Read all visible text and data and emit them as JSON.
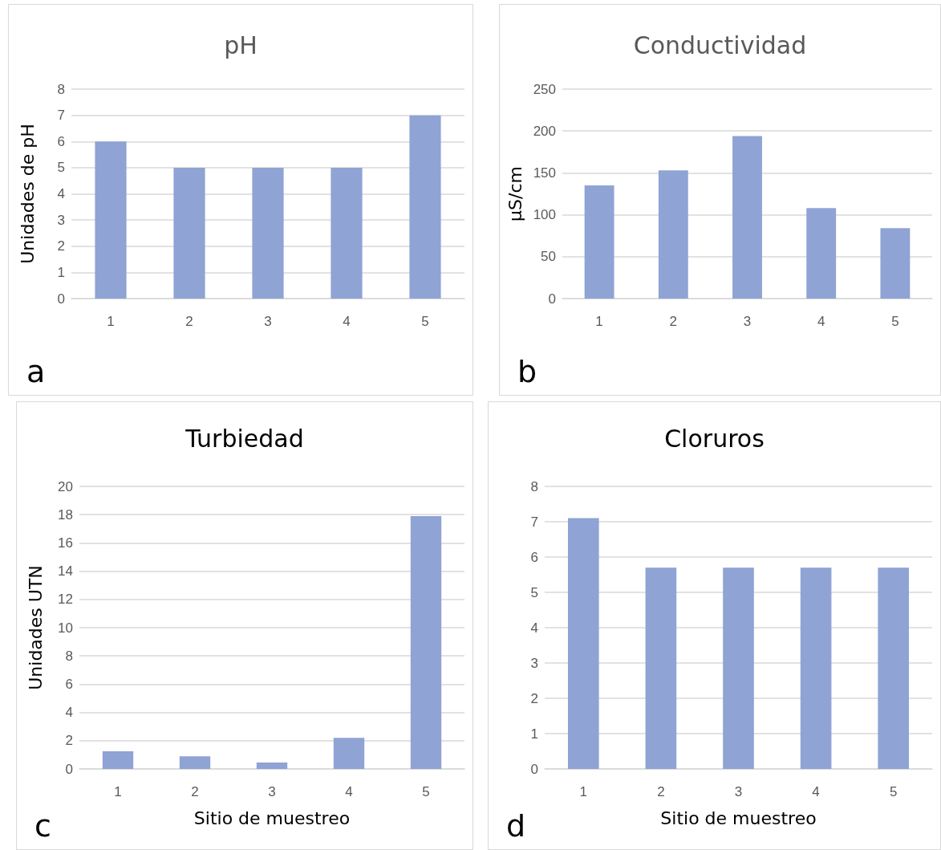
{
  "chart_data": [
    {
      "type": "bar",
      "title": "pH",
      "ylabel": "Unidades de pH",
      "categories": [
        "1",
        "2",
        "3",
        "4",
        "5"
      ],
      "values": [
        6,
        5,
        5,
        5,
        7
      ],
      "color": "#8fa3d4",
      "ylim": [
        0,
        8
      ],
      "yticks": [
        0,
        1,
        2,
        3,
        4,
        5,
        6,
        7,
        8
      ],
      "grid": "y",
      "annotations": [
        "a"
      ]
    },
    {
      "type": "bar",
      "title": "Conductividad",
      "ylabel": "μS/cm",
      "categories": [
        "1",
        "2",
        "3",
        "4",
        "5"
      ],
      "values": [
        135,
        153,
        194,
        108,
        84
      ],
      "color": "#8fa3d4",
      "ylim": [
        0,
        250
      ],
      "yticks": [
        0,
        50,
        100,
        150,
        200,
        250
      ],
      "grid": "y",
      "annotations": [
        "b"
      ]
    },
    {
      "type": "bar",
      "title": "Turbiedad",
      "ylabel": "Unidades UTN",
      "xlabel": "Sitio de muestreo",
      "categories": [
        "1",
        "2",
        "3",
        "4",
        "5"
      ],
      "values": [
        1.25,
        0.9,
        0.45,
        2.2,
        17.9
      ],
      "color": "#8fa3d4",
      "ylim": [
        0,
        20
      ],
      "yticks": [
        0,
        2,
        4,
        6,
        8,
        10,
        12,
        14,
        16,
        18,
        20
      ],
      "grid": "y",
      "annotations": [
        "c"
      ]
    },
    {
      "type": "bar",
      "title": "Cloruros",
      "xlabel": "Sitio de muestreo",
      "categories": [
        "1",
        "2",
        "3",
        "4",
        "5"
      ],
      "values": [
        7.1,
        5.7,
        5.7,
        5.7,
        5.7
      ],
      "color": "#8fa3d4",
      "ylim": [
        0,
        8
      ],
      "yticks": [
        0,
        1,
        2,
        3,
        4,
        5,
        6,
        7,
        8
      ],
      "grid": "y",
      "annotations": [
        "d"
      ]
    }
  ]
}
